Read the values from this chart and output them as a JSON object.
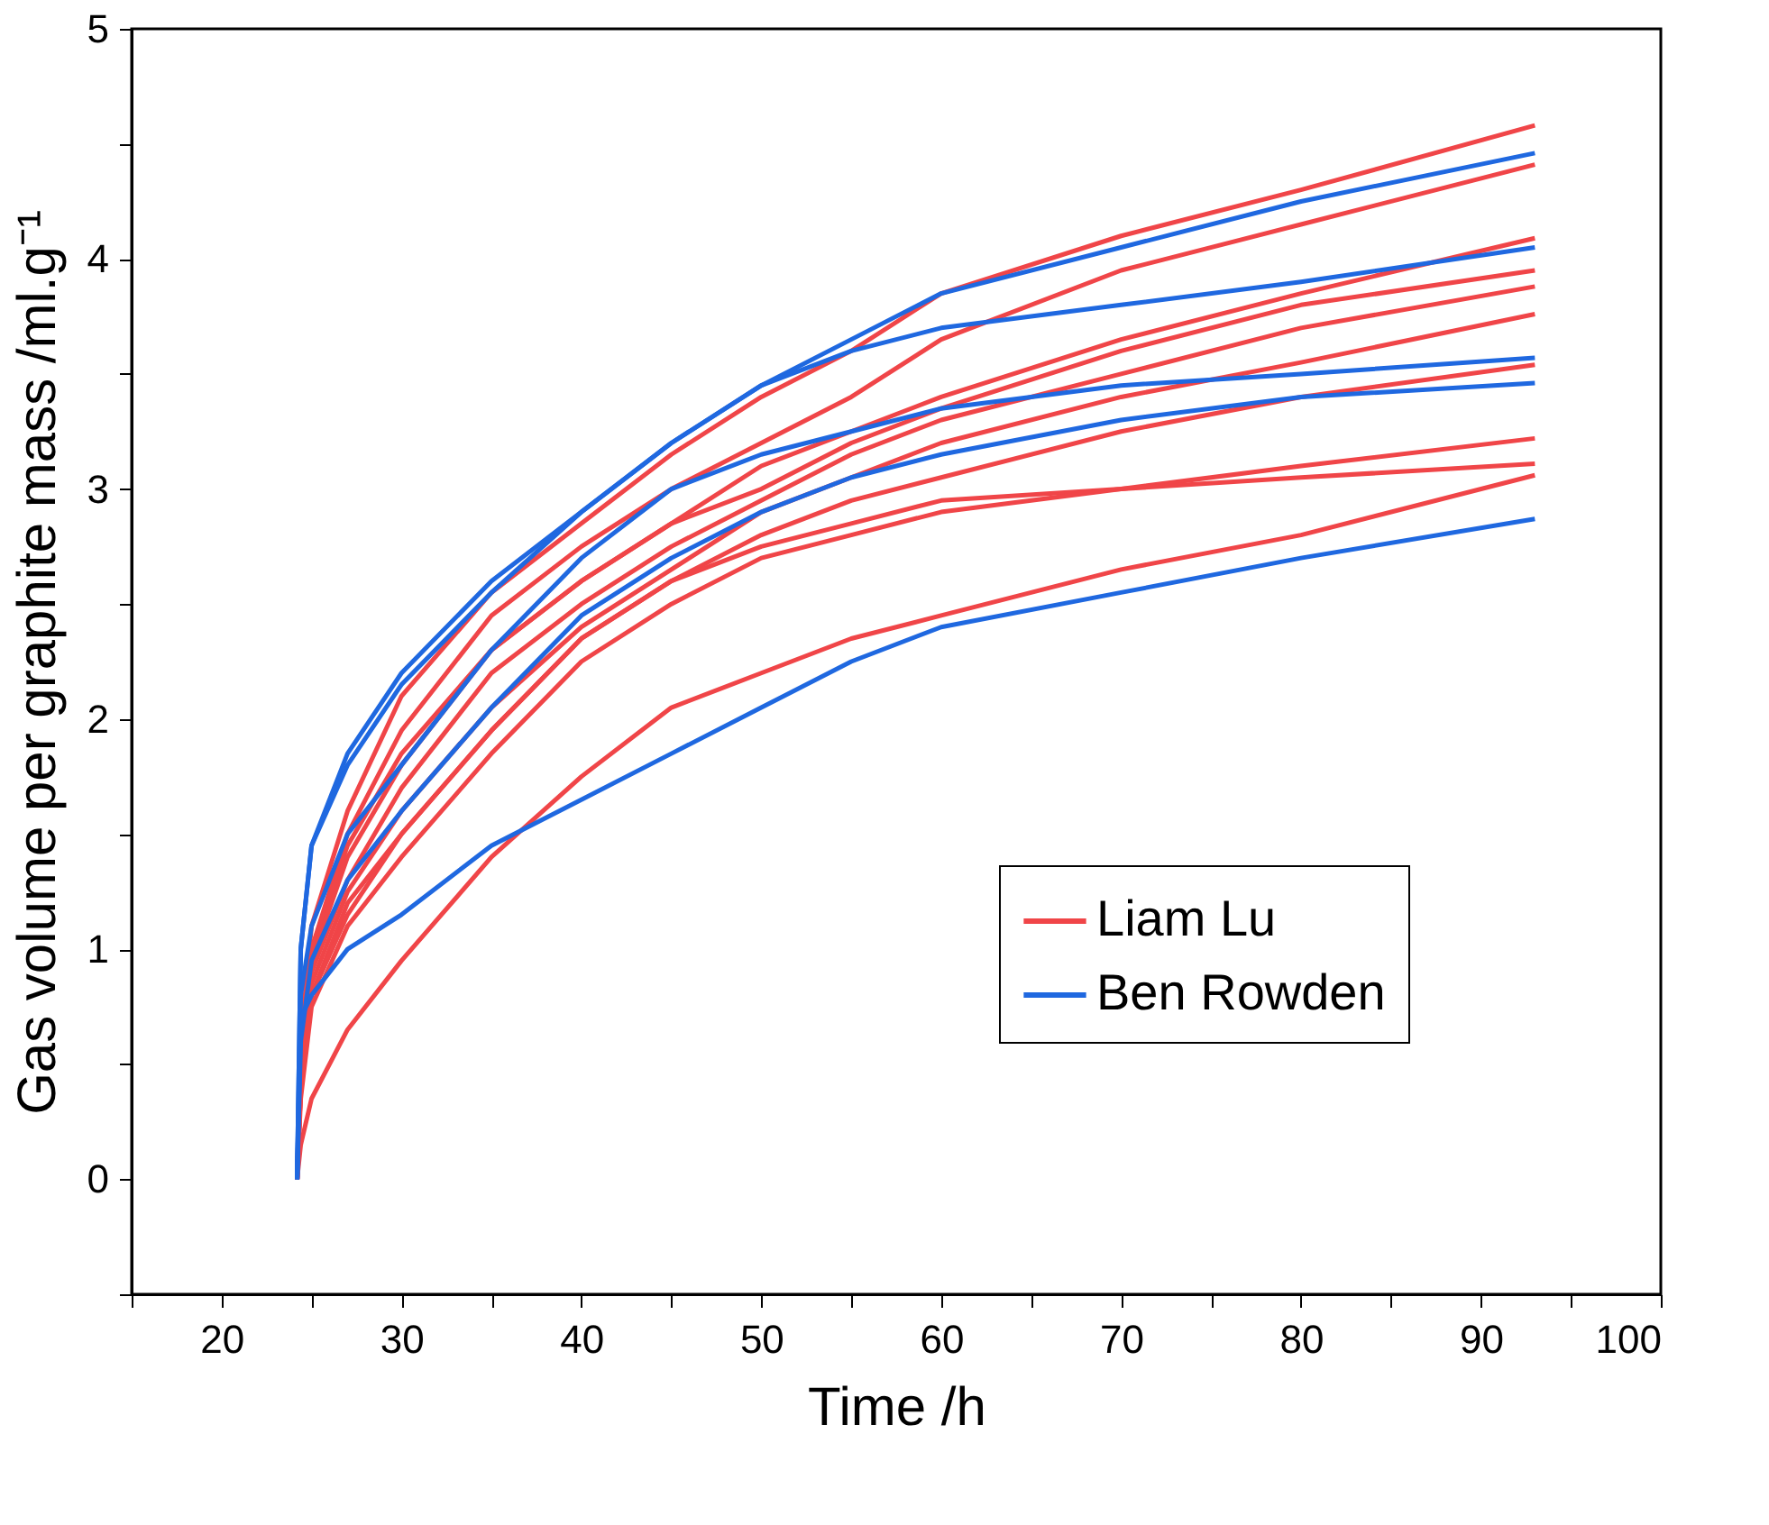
{
  "chart_data": {
    "type": "line",
    "xlabel": "Time /h",
    "ylabel": "Gas volume per graphite mass /ml.g⁻¹",
    "x": [
      24.2,
      24.4,
      25,
      27,
      30,
      35,
      40,
      45,
      50,
      55,
      60,
      70,
      80,
      93
    ],
    "xlim": [
      15,
      100
    ],
    "xticks": [
      {
        "value": 15,
        "label": null
      },
      20,
      {
        "value": 25,
        "label": null
      },
      30,
      {
        "value": 35,
        "label": null
      },
      40,
      {
        "value": 45,
        "label": null
      },
      50,
      {
        "value": 55,
        "label": null
      },
      60,
      {
        "value": 65,
        "label": null
      },
      70,
      {
        "value": 75,
        "label": null
      },
      80,
      {
        "value": 85,
        "label": null
      },
      90,
      {
        "value": 95,
        "label": null
      },
      100
    ],
    "ylim": [
      -0.5,
      5
    ],
    "yticks": [
      {
        "value": -0.5,
        "label": null
      },
      0,
      {
        "value": 0.5,
        "label": null
      },
      1,
      {
        "value": 1.5,
        "label": null
      },
      2,
      {
        "value": 2.5,
        "label": null
      },
      3,
      {
        "value": 3.5,
        "label": null
      },
      4,
      {
        "value": 4.5,
        "label": null
      },
      5
    ],
    "grid": false,
    "legend": "bottom right",
    "series": [
      {
        "name": "Liam Lu",
        "color": "#f04548",
        "values": [
          0,
          0.6,
          1.1,
          1.6,
          2.1,
          2.55,
          2.85,
          3.15,
          3.4,
          3.6,
          3.85,
          4.1,
          4.3,
          4.58
        ]
      },
      {
        "color": "#f04548",
        "values": [
          0,
          0.5,
          1.0,
          1.5,
          1.95,
          2.45,
          2.75,
          3.0,
          3.2,
          3.4,
          3.65,
          3.95,
          4.15,
          4.41
        ]
      },
      {
        "color": "#f04548",
        "values": [
          0,
          0.5,
          1.0,
          1.45,
          1.85,
          2.3,
          2.6,
          2.85,
          3.1,
          3.25,
          3.4,
          3.65,
          3.85,
          4.09
        ]
      },
      {
        "color": "#f04548",
        "values": [
          0,
          0.45,
          0.95,
          1.4,
          1.8,
          2.3,
          2.6,
          2.85,
          3.0,
          3.2,
          3.35,
          3.6,
          3.8,
          3.95
        ]
      },
      {
        "color": "#f04548",
        "values": [
          0,
          0.45,
          0.9,
          1.3,
          1.7,
          2.2,
          2.5,
          2.75,
          2.95,
          3.15,
          3.3,
          3.5,
          3.7,
          3.88
        ]
      },
      {
        "color": "#f04548",
        "values": [
          0,
          0.4,
          0.85,
          1.25,
          1.6,
          2.05,
          2.4,
          2.65,
          2.9,
          3.05,
          3.2,
          3.4,
          3.55,
          3.76
        ]
      },
      {
        "color": "#f04548",
        "values": [
          0,
          0.4,
          0.8,
          1.2,
          1.5,
          1.95,
          2.35,
          2.6,
          2.8,
          2.95,
          3.05,
          3.25,
          3.4,
          3.54
        ]
      },
      {
        "color": "#f04548",
        "values": [
          0,
          0.4,
          0.8,
          1.15,
          1.5,
          1.95,
          2.35,
          2.6,
          2.75,
          2.85,
          2.95,
          3.0,
          3.1,
          3.22
        ]
      },
      {
        "color": "#f04548",
        "values": [
          0,
          0.35,
          0.75,
          1.1,
          1.4,
          1.85,
          2.25,
          2.5,
          2.7,
          2.8,
          2.9,
          3.0,
          3.05,
          3.11
        ]
      },
      {
        "color": "#f04548",
        "values": [
          0,
          0.15,
          0.35,
          0.65,
          0.95,
          1.4,
          1.75,
          2.05,
          2.2,
          2.35,
          2.45,
          2.65,
          2.8,
          3.06
        ]
      },
      {
        "name": "Ben Rowden",
        "color": "#1f68e0",
        "values": [
          0,
          1.0,
          1.45,
          1.85,
          2.2,
          2.6,
          2.9,
          3.2,
          3.45,
          3.65,
          3.85,
          4.05,
          4.25,
          4.46
        ]
      },
      {
        "color": "#1f68e0",
        "values": [
          0,
          1.0,
          1.45,
          1.8,
          2.15,
          2.55,
          2.9,
          3.2,
          3.45,
          3.6,
          3.7,
          3.8,
          3.9,
          4.05
        ]
      },
      {
        "color": "#1f68e0",
        "values": [
          0,
          0.8,
          1.1,
          1.5,
          1.8,
          2.3,
          2.7,
          3.0,
          3.15,
          3.25,
          3.35,
          3.45,
          3.5,
          3.57
        ]
      },
      {
        "color": "#1f68e0",
        "values": [
          0,
          0.6,
          0.95,
          1.3,
          1.6,
          2.05,
          2.45,
          2.7,
          2.9,
          3.05,
          3.15,
          3.3,
          3.4,
          3.46
        ]
      },
      {
        "color": "#1f68e0",
        "values": [
          0,
          0.7,
          0.8,
          1.0,
          1.15,
          1.45,
          1.65,
          1.85,
          2.05,
          2.25,
          2.4,
          2.55,
          2.7,
          2.87
        ]
      }
    ]
  }
}
